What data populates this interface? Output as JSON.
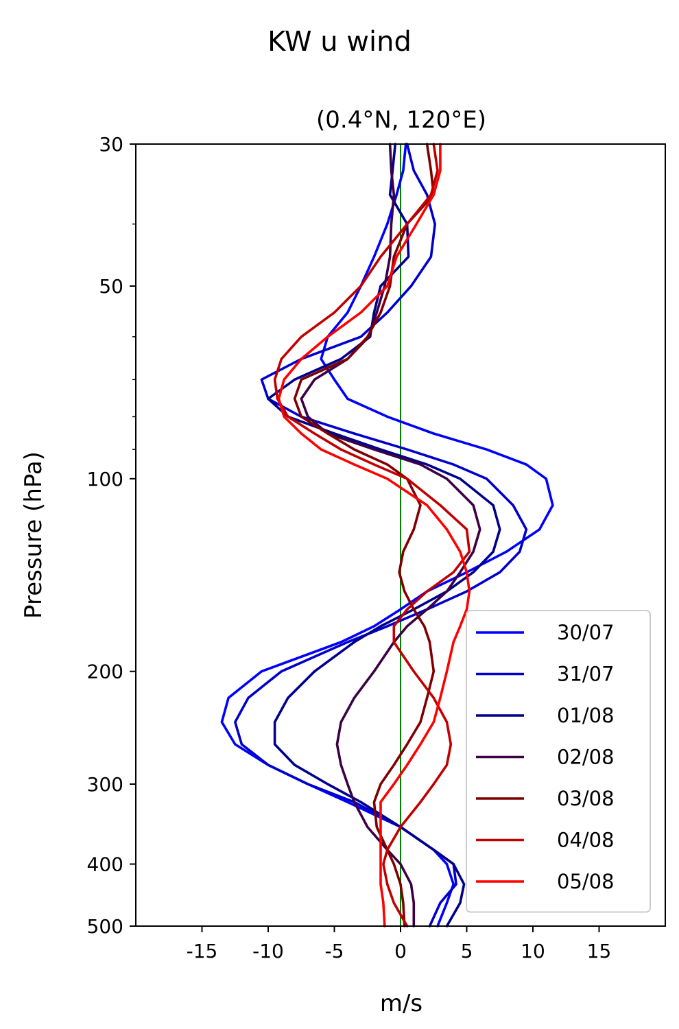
{
  "chart_data": {
    "type": "line",
    "title": "KW u wind",
    "subtitle": "(0.4°N, 120°E)",
    "xlabel": "m/s",
    "ylabel": "Pressure (hPa)",
    "xlim": [
      -20,
      20
    ],
    "ylim": [
      500,
      30
    ],
    "yscale": "log",
    "xticks": [
      -15,
      -10,
      -5,
      0,
      5,
      10,
      15
    ],
    "xtick_labels": [
      "-15",
      "-10",
      "-5",
      "0",
      "5",
      "10",
      "15"
    ],
    "yticks": [
      30,
      50,
      100,
      200,
      300,
      400,
      500
    ],
    "ytick_labels": [
      "30",
      "50",
      "100",
      "200",
      "300",
      "400",
      "500"
    ],
    "yminor_ticks": [
      40,
      60,
      70,
      80,
      90
    ],
    "reference_line": {
      "x": 0,
      "color": "#008000"
    },
    "legend_position": "lower-right",
    "series": [
      {
        "name": "30/07",
        "color": "#0000ff",
        "p": [
          30,
          33,
          36,
          40,
          45,
          50,
          55,
          60,
          65,
          70,
          75,
          80,
          85,
          90,
          95,
          100,
          110,
          120,
          130,
          140,
          150,
          160,
          170,
          180,
          200,
          220,
          240,
          260,
          280,
          300,
          320,
          350,
          380,
          400,
          430,
          460,
          500
        ],
        "u": [
          0.4,
          0.2,
          -0.3,
          -1.0,
          -2.0,
          -3.0,
          -4.0,
          -5.5,
          -6.0,
          -5.0,
          -4.0,
          -1.0,
          2.5,
          6.5,
          9.5,
          11.0,
          11.5,
          10.5,
          8.0,
          5.0,
          2.0,
          0.0,
          -2.0,
          -4.5,
          -10.5,
          -13.0,
          -13.5,
          -12.5,
          -10.0,
          -7.0,
          -4.0,
          0.0,
          2.5,
          3.5,
          4.0,
          3.5,
          2.8
        ]
      },
      {
        "name": "31/07",
        "color": "#0000cd",
        "p": [
          30,
          33,
          36,
          40,
          45,
          50,
          55,
          60,
          65,
          70,
          75,
          80,
          85,
          90,
          95,
          100,
          110,
          120,
          130,
          140,
          150,
          160,
          170,
          180,
          200,
          220,
          240,
          260,
          280,
          300,
          320,
          350,
          380,
          400,
          430,
          460,
          500
        ],
        "u": [
          0.5,
          1.0,
          2.0,
          2.6,
          2.3,
          0.8,
          -1.0,
          -3.0,
          -7.5,
          -10.5,
          -10.0,
          -7.5,
          -3.5,
          0.5,
          4.0,
          6.5,
          8.5,
          9.5,
          9.0,
          7.5,
          5.0,
          2.0,
          -1.0,
          -4.0,
          -9.0,
          -11.5,
          -12.5,
          -12.0,
          -10.0,
          -7.0,
          -3.5,
          0.0,
          2.5,
          4.0,
          4.2,
          3.0,
          2.2
        ]
      },
      {
        "name": "01/08",
        "color": "#00008b",
        "p": [
          30,
          33,
          36,
          40,
          45,
          50,
          55,
          60,
          65,
          70,
          75,
          80,
          85,
          90,
          95,
          100,
          110,
          120,
          130,
          140,
          150,
          160,
          170,
          180,
          200,
          220,
          240,
          260,
          280,
          300,
          320,
          350,
          380,
          400,
          430,
          460,
          500
        ],
        "u": [
          -0.4,
          -0.6,
          -0.8,
          0.5,
          0.6,
          -1.5,
          -2.0,
          -2.3,
          -4.5,
          -8.0,
          -10.0,
          -8.5,
          -5.0,
          -1.5,
          2.0,
          4.5,
          7.0,
          7.5,
          7.0,
          5.5,
          3.5,
          1.0,
          -1.5,
          -3.5,
          -6.5,
          -8.5,
          -9.5,
          -9.5,
          -8.0,
          -5.5,
          -3.0,
          0.0,
          2.5,
          4.0,
          4.8,
          4.5,
          3.5
        ]
      },
      {
        "name": "02/08",
        "color": "#3b0045",
        "p": [
          30,
          33,
          36,
          40,
          45,
          50,
          55,
          60,
          65,
          70,
          75,
          80,
          85,
          90,
          95,
          100,
          110,
          120,
          130,
          140,
          150,
          160,
          170,
          180,
          200,
          220,
          240,
          260,
          280,
          300,
          320,
          350,
          380,
          400,
          430,
          460,
          500
        ],
        "u": [
          -0.8,
          -0.7,
          -0.5,
          -0.7,
          -0.8,
          -1.2,
          -1.8,
          -2.4,
          -4.0,
          -6.5,
          -7.5,
          -7.0,
          -5.5,
          -2.0,
          1.5,
          3.5,
          5.5,
          6.0,
          5.5,
          4.5,
          3.5,
          2.0,
          0.5,
          -0.5,
          -2.0,
          -3.5,
          -4.5,
          -4.8,
          -4.5,
          -4.0,
          -3.5,
          -2.5,
          -1.0,
          0.0,
          0.8,
          1.0,
          1.0
        ]
      },
      {
        "name": "03/08",
        "color": "#800000",
        "p": [
          30,
          33,
          36,
          40,
          45,
          50,
          55,
          60,
          65,
          70,
          75,
          80,
          85,
          90,
          95,
          100,
          110,
          120,
          130,
          140,
          150,
          160,
          170,
          180,
          200,
          220,
          240,
          260,
          280,
          300,
          320,
          350,
          380,
          400,
          430,
          460,
          500
        ],
        "u": [
          2.0,
          2.3,
          2.5,
          0.5,
          -0.5,
          -0.8,
          -1.5,
          -2.5,
          -4.0,
          -7.5,
          -8.0,
          -7.5,
          -5.5,
          -3.5,
          -1.0,
          0.5,
          1.5,
          1.0,
          0.2,
          -0.1,
          0.3,
          1.0,
          1.8,
          2.2,
          2.5,
          2.0,
          1.5,
          0.5,
          -0.5,
          -1.5,
          -2.0,
          -1.8,
          -1.0,
          -0.5,
          0.0,
          0.2,
          0.3
        ]
      },
      {
        "name": "04/08",
        "color": "#c00000",
        "p": [
          30,
          33,
          36,
          40,
          45,
          50,
          55,
          60,
          65,
          70,
          75,
          80,
          85,
          90,
          95,
          100,
          110,
          120,
          130,
          140,
          150,
          160,
          170,
          180,
          200,
          220,
          240,
          260,
          280,
          300,
          320,
          350,
          380,
          400,
          430,
          460,
          500
        ],
        "u": [
          2.5,
          2.8,
          2.3,
          0.5,
          -1.5,
          -3.0,
          -5.0,
          -7.5,
          -9.0,
          -9.5,
          -9.3,
          -8.5,
          -6.5,
          -4.5,
          -2.0,
          0.5,
          3.0,
          5.0,
          5.2,
          4.0,
          2.0,
          0.5,
          -0.5,
          -0.5,
          1.0,
          2.5,
          3.5,
          3.8,
          3.5,
          2.5,
          1.5,
          0.0,
          -1.0,
          -1.3,
          -1.0,
          -0.5,
          0.5
        ]
      },
      {
        "name": "05/08",
        "color": "#ff0000",
        "p": [
          30,
          33,
          36,
          40,
          45,
          50,
          55,
          60,
          65,
          70,
          75,
          80,
          85,
          90,
          95,
          100,
          110,
          120,
          130,
          140,
          150,
          160,
          170,
          180,
          200,
          220,
          240,
          260,
          280,
          300,
          320,
          350,
          380,
          400,
          430,
          460,
          500
        ],
        "u": [
          3.0,
          3.0,
          2.5,
          1.2,
          -0.3,
          -1.0,
          -3.0,
          -5.5,
          -7.5,
          -8.8,
          -9.2,
          -8.8,
          -7.5,
          -6.0,
          -3.5,
          -1.0,
          2.0,
          3.5,
          4.5,
          5.0,
          5.2,
          5.0,
          4.5,
          4.0,
          3.5,
          3.0,
          2.5,
          1.5,
          0.5,
          -0.5,
          -1.5,
          -1.5,
          -1.5,
          -1.5,
          -1.5,
          -1.3,
          -1.2
        ]
      }
    ]
  }
}
